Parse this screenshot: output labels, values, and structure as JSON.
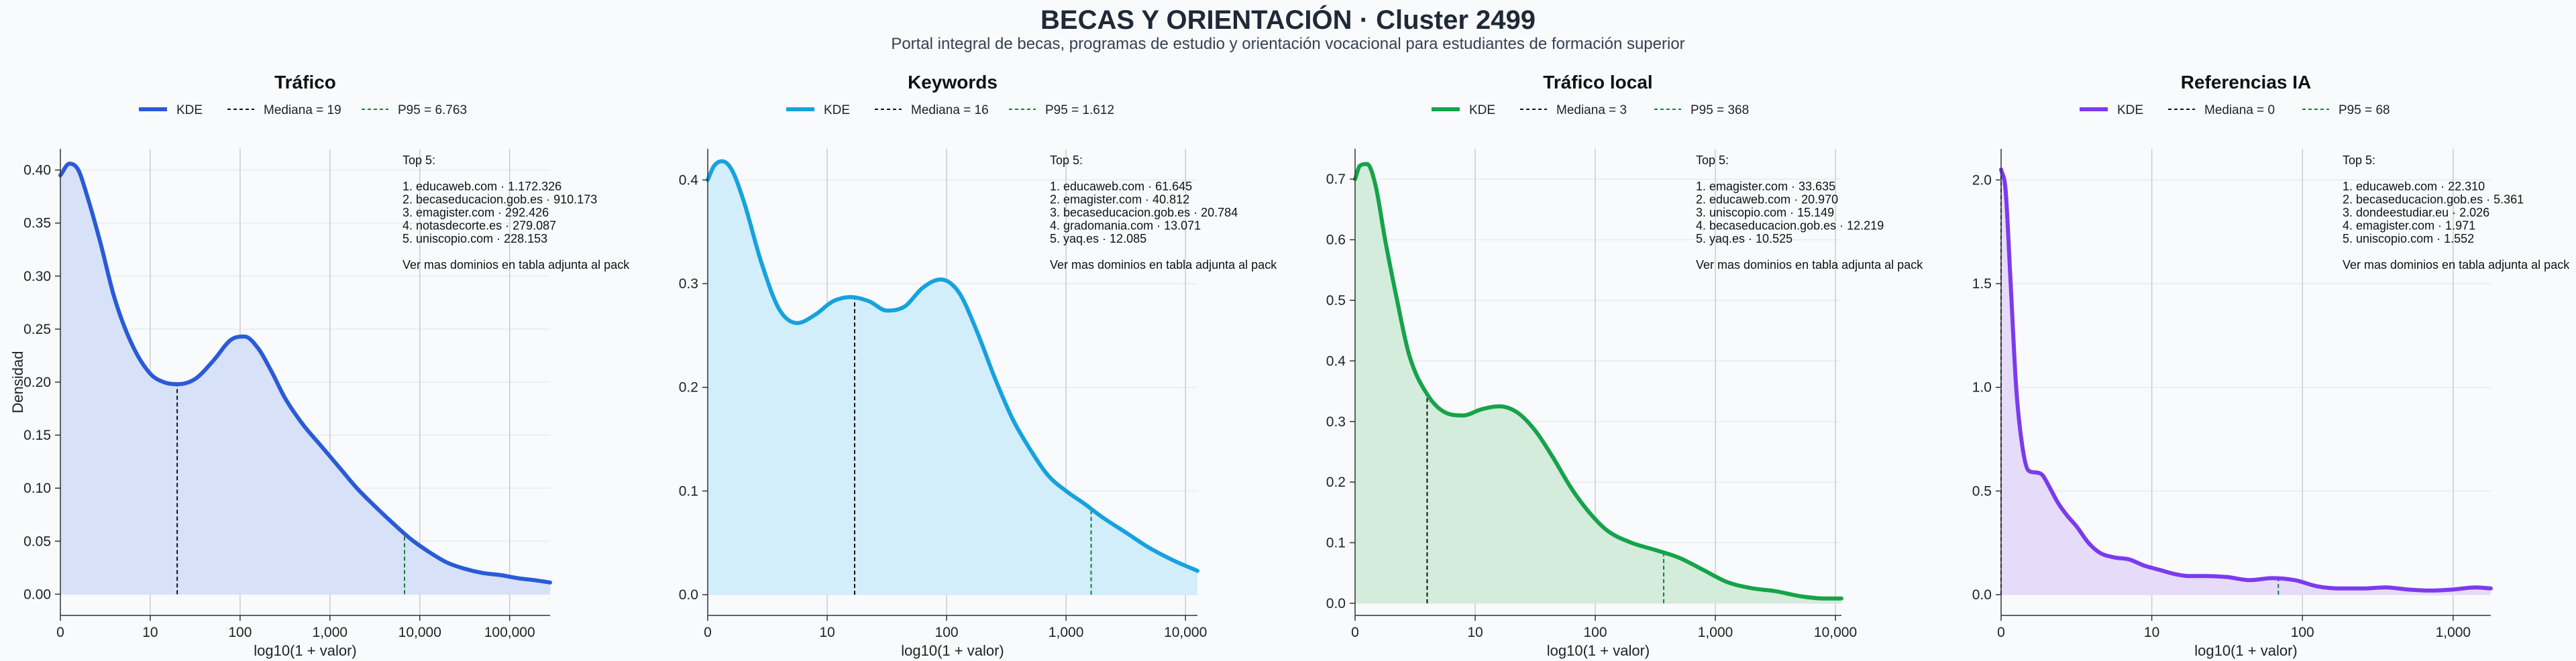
{
  "header": {
    "title": "BECAS Y ORIENTACIÓN · Cluster 2499",
    "subtitle": "Portal integral de becas, programas de estudio y orientación vocacional para estudiantes de formación superior"
  },
  "chart_data": [
    {
      "type": "area",
      "title": "Tráfico",
      "xlabel": "log10(1 + valor)",
      "ylabel": "Densidad",
      "color": "#2a5bd7",
      "fill": "#d7e1f7",
      "xlim": [
        0,
        5.45
      ],
      "ylim": [
        -0.02,
        0.42
      ],
      "x_ticks": [
        {
          "v": 0,
          "label": "0"
        },
        {
          "v": 1,
          "label": "10"
        },
        {
          "v": 2,
          "label": "100"
        },
        {
          "v": 3,
          "label": "1,000"
        },
        {
          "v": 4,
          "label": "10,000"
        },
        {
          "v": 5,
          "label": "100,000"
        }
      ],
      "y_ticks": [
        {
          "v": 0,
          "label": "0.00"
        },
        {
          "v": 0.05,
          "label": "0.05"
        },
        {
          "v": 0.1,
          "label": "0.10"
        },
        {
          "v": 0.15,
          "label": "0.15"
        },
        {
          "v": 0.2,
          "label": "0.20"
        },
        {
          "v": 0.25,
          "label": "0.25"
        },
        {
          "v": 0.3,
          "label": "0.30"
        },
        {
          "v": 0.35,
          "label": "0.35"
        },
        {
          "v": 0.4,
          "label": "0.40"
        }
      ],
      "x": [
        0,
        0.1,
        0.2,
        0.3,
        0.45,
        0.6,
        0.8,
        1.0,
        1.15,
        1.3,
        1.5,
        1.7,
        1.9,
        2.05,
        2.2,
        2.35,
        2.5,
        2.7,
        2.9,
        3.1,
        3.3,
        3.5,
        3.7,
        3.9,
        4.1,
        4.3,
        4.5,
        4.7,
        4.9,
        5.1,
        5.3,
        5.45
      ],
      "y": [
        0.395,
        0.406,
        0.4,
        0.375,
        0.33,
        0.28,
        0.235,
        0.208,
        0.2,
        0.198,
        0.203,
        0.22,
        0.24,
        0.243,
        0.232,
        0.21,
        0.185,
        0.16,
        0.14,
        0.12,
        0.1,
        0.083,
        0.067,
        0.052,
        0.04,
        0.03,
        0.024,
        0.02,
        0.018,
        0.015,
        0.013,
        0.011
      ],
      "legend": {
        "kde": "KDE",
        "median": "Mediana = 19",
        "p95": "P95 = 6.763"
      },
      "median_x": 1.3,
      "p95_x": 3.83,
      "annotation": [
        "Top 5:",
        "",
        "1. educaweb.com · 1.172.326",
        "2. becaseducacion.gob.es · 910.173",
        "3. emagister.com · 292.426",
        "4. notasdecorte.es · 279.087",
        "5. uniscopio.com · 228.153",
        "",
        "Ver mas dominios en tabla adjunta al pack"
      ]
    },
    {
      "type": "area",
      "title": "Keywords",
      "xlabel": "log10(1 + valor)",
      "ylabel": "",
      "color": "#17a2dd",
      "fill": "#d2eefb",
      "xlim": [
        0,
        4.1
      ],
      "ylim": [
        -0.02,
        0.43
      ],
      "x_ticks": [
        {
          "v": 0,
          "label": "0"
        },
        {
          "v": 1,
          "label": "10"
        },
        {
          "v": 2,
          "label": "100"
        },
        {
          "v": 3,
          "label": "1,000"
        },
        {
          "v": 4,
          "label": "10,000"
        }
      ],
      "y_ticks": [
        {
          "v": 0,
          "label": "0.0"
        },
        {
          "v": 0.1,
          "label": "0.1"
        },
        {
          "v": 0.2,
          "label": "0.2"
        },
        {
          "v": 0.3,
          "label": "0.3"
        },
        {
          "v": 0.4,
          "label": "0.4"
        }
      ],
      "x": [
        0,
        0.05,
        0.12,
        0.2,
        0.3,
        0.45,
        0.6,
        0.75,
        0.9,
        1.05,
        1.2,
        1.35,
        1.5,
        1.65,
        1.8,
        1.95,
        2.1,
        2.25,
        2.4,
        2.55,
        2.7,
        2.85,
        3.0,
        3.15,
        3.3,
        3.5,
        3.7,
        3.9,
        4.1
      ],
      "y": [
        0.4,
        0.413,
        0.418,
        0.41,
        0.38,
        0.32,
        0.275,
        0.262,
        0.27,
        0.283,
        0.287,
        0.283,
        0.274,
        0.278,
        0.296,
        0.304,
        0.292,
        0.255,
        0.21,
        0.17,
        0.14,
        0.115,
        0.1,
        0.088,
        0.075,
        0.06,
        0.045,
        0.033,
        0.023
      ],
      "legend": {
        "kde": "KDE",
        "median": "Mediana = 16",
        "p95": "P95 = 1.612"
      },
      "median_x": 1.23,
      "p95_x": 3.21,
      "annotation": [
        "Top 5:",
        "",
        "1. educaweb.com · 61.645",
        "2. emagister.com · 40.812",
        "3. becaseducacion.gob.es · 20.784",
        "4. gradomania.com · 13.071",
        "5. yaq.es · 12.085",
        "",
        "Ver mas dominios en tabla adjunta al pack"
      ]
    },
    {
      "type": "area",
      "title": "Tráfico local",
      "xlabel": "log10(1 + valor)",
      "ylabel": "",
      "color": "#16a34a",
      "fill": "#d3ecdb",
      "xlim": [
        0,
        4.05
      ],
      "ylim": [
        -0.02,
        0.75
      ],
      "x_ticks": [
        {
          "v": 0,
          "label": "0"
        },
        {
          "v": 1,
          "label": "10"
        },
        {
          "v": 2,
          "label": "100"
        },
        {
          "v": 3,
          "label": "1,000"
        },
        {
          "v": 4,
          "label": "10,000"
        }
      ],
      "y_ticks": [
        {
          "v": 0,
          "label": "0.0"
        },
        {
          "v": 0.1,
          "label": "0.1"
        },
        {
          "v": 0.2,
          "label": "0.2"
        },
        {
          "v": 0.3,
          "label": "0.3"
        },
        {
          "v": 0.4,
          "label": "0.4"
        },
        {
          "v": 0.5,
          "label": "0.5"
        },
        {
          "v": 0.6,
          "label": "0.6"
        },
        {
          "v": 0.7,
          "label": "0.7"
        }
      ],
      "x": [
        0,
        0.04,
        0.1,
        0.17,
        0.25,
        0.35,
        0.45,
        0.6,
        0.75,
        0.9,
        1.05,
        1.2,
        1.35,
        1.5,
        1.65,
        1.8,
        1.95,
        2.1,
        2.3,
        2.5,
        2.7,
        2.9,
        3.1,
        3.3,
        3.5,
        3.7,
        3.9,
        4.05
      ],
      "y": [
        0.7,
        0.722,
        0.725,
        0.69,
        0.6,
        0.5,
        0.41,
        0.345,
        0.315,
        0.31,
        0.32,
        0.325,
        0.315,
        0.285,
        0.24,
        0.19,
        0.15,
        0.12,
        0.1,
        0.088,
        0.075,
        0.055,
        0.035,
        0.025,
        0.02,
        0.012,
        0.008,
        0.008
      ],
      "legend": {
        "kde": "KDE",
        "median": "Mediana = 3",
        "p95": "P95 = 368"
      },
      "median_x": 0.6,
      "p95_x": 2.57,
      "annotation": [
        "Top 5:",
        "",
        "1. emagister.com · 33.635",
        "2. educaweb.com · 20.970",
        "3. uniscopio.com · 15.149",
        "4. becaseducacion.gob.es · 12.219",
        "5. yaq.es · 10.525",
        "",
        "Ver mas dominios en tabla adjunta al pack"
      ]
    },
    {
      "type": "area",
      "title": "Referencias IA",
      "xlabel": "log10(1 + valor)",
      "ylabel": "",
      "color": "#7c3aed",
      "fill": "#e6dbf8",
      "xlim": [
        0,
        3.25
      ],
      "ylim": [
        -0.1,
        2.15
      ],
      "x_ticks": [
        {
          "v": 0,
          "label": "0"
        },
        {
          "v": 1,
          "label": "10"
        },
        {
          "v": 2,
          "label": "100"
        },
        {
          "v": 3,
          "label": "1,000"
        }
      ],
      "y_ticks": [
        {
          "v": 0,
          "label": "0.0"
        },
        {
          "v": 0.5,
          "label": "0.5"
        },
        {
          "v": 1,
          "label": "1.0"
        },
        {
          "v": 1.5,
          "label": "1.5"
        },
        {
          "v": 2,
          "label": "2.0"
        }
      ],
      "x": [
        0,
        0.03,
        0.06,
        0.1,
        0.14,
        0.18,
        0.22,
        0.27,
        0.32,
        0.38,
        0.44,
        0.5,
        0.58,
        0.66,
        0.75,
        0.85,
        0.95,
        1.05,
        1.15,
        1.25,
        1.35,
        1.5,
        1.65,
        1.8,
        1.95,
        2.1,
        2.25,
        2.4,
        2.55,
        2.7,
        2.85,
        3.0,
        3.15,
        3.25
      ],
      "y": [
        2.05,
        1.95,
        1.55,
        1.0,
        0.72,
        0.6,
        0.59,
        0.58,
        0.52,
        0.44,
        0.38,
        0.33,
        0.25,
        0.2,
        0.18,
        0.17,
        0.14,
        0.12,
        0.1,
        0.09,
        0.09,
        0.085,
        0.07,
        0.08,
        0.07,
        0.04,
        0.03,
        0.03,
        0.035,
        0.025,
        0.02,
        0.025,
        0.035,
        0.03
      ],
      "legend": {
        "kde": "KDE",
        "median": "Mediana = 0",
        "p95": "P95 = 68"
      },
      "median_x": 0,
      "p95_x": 1.84,
      "annotation": [
        "Top 5:",
        "",
        "1. educaweb.com · 22.310",
        "2. becaseducacion.gob.es · 5.361",
        "3. dondeestudiar.eu · 2.026",
        "4. emagister.com · 1.971",
        "5. uniscopio.com · 1.552",
        "",
        "Ver mas dominios en tabla adjunta al pack"
      ]
    }
  ]
}
